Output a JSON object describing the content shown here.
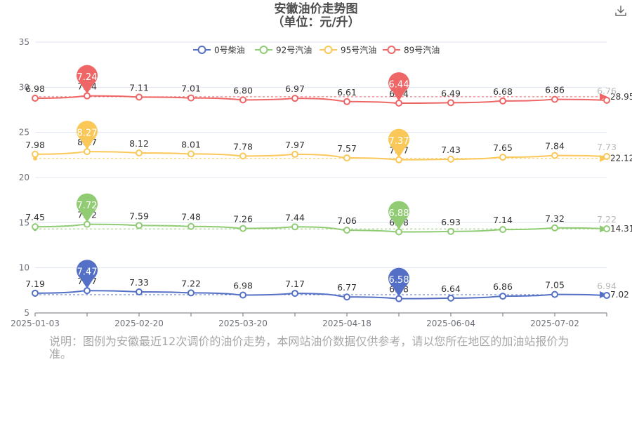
{
  "title": {
    "line1": "安徽油价走势图",
    "line2": "（单位：元/升）"
  },
  "toolbar": {
    "download_icon": "download-icon"
  },
  "note": "说明：图例为安徽最近12次调价的油价走势，本网站油价数据仅供参考，请以您所在地区的加油站报价为准。",
  "chart_data": {
    "type": "line",
    "x_ticks": [
      "2025-01-03",
      "2025-02-20",
      "2025-03-20",
      "2025-04-18",
      "2025-06-04",
      "2025-07-02"
    ],
    "yticks": [
      5,
      10,
      15,
      20,
      25,
      30,
      35
    ],
    "ylim": [
      5,
      35
    ],
    "grid": true,
    "legend_position": "top",
    "series": [
      {
        "name": "0号柴油",
        "color": "#5470c6",
        "values": [
          7.19,
          7.47,
          7.33,
          7.22,
          6.98,
          7.17,
          6.77,
          6.58,
          6.64,
          6.86,
          7.05,
          6.94
        ],
        "labels": [
          "7.19",
          "7.47",
          "7.33",
          "7.22",
          "6.98",
          "7.17",
          "6.77",
          "6.58",
          "6.64",
          "6.86",
          "7.05",
          "6.94"
        ],
        "max": {
          "value": "7.47",
          "index": 1
        },
        "min": {
          "value": "6.58",
          "index": 7
        },
        "average": "7.02"
      },
      {
        "name": "92号汽油",
        "color": "#91cc75",
        "values": [
          7.45,
          7.72,
          7.59,
          7.48,
          7.26,
          7.44,
          7.06,
          6.88,
          6.93,
          7.14,
          7.32,
          7.22
        ],
        "labels": [
          "7.45",
          "7.72",
          "7.59",
          "7.48",
          "7.26",
          "7.44",
          "7.06",
          "6.88",
          "6.93",
          "7.14",
          "7.32",
          "7.22"
        ],
        "max": {
          "value": "7.72",
          "index": 1
        },
        "min": {
          "value": "6.88",
          "index": 7
        },
        "average": "14.31"
      },
      {
        "name": "95号汽油",
        "color": "#fac858",
        "values": [
          7.98,
          8.27,
          8.12,
          8.01,
          7.78,
          7.97,
          7.57,
          7.37,
          7.43,
          7.65,
          7.84,
          7.73
        ],
        "labels": [
          "7.98",
          "8.27",
          "8.12",
          "8.01",
          "7.78",
          "7.97",
          "7.57",
          "7.37",
          "7.43",
          "7.65",
          "7.84",
          "7.73"
        ],
        "max": {
          "value": "8.27",
          "index": 1
        },
        "min": {
          "value": "7.37",
          "index": 7
        },
        "average": "22.12"
      },
      {
        "name": "89号汽油",
        "color": "#ee6666",
        "values": [
          6.98,
          7.24,
          7.11,
          7.01,
          6.8,
          6.97,
          6.61,
          6.44,
          6.49,
          6.68,
          6.86,
          6.76
        ],
        "labels": [
          "6.98",
          "7.24",
          "7.11",
          "7.01",
          "6.80",
          "6.97",
          "6.61",
          "6.44",
          "6.49",
          "6.68",
          "6.86",
          "6.76"
        ],
        "max": {
          "value": "7.24",
          "index": 1
        },
        "min": {
          "value": "6.44",
          "index": 7
        },
        "average": "28.95"
      }
    ]
  }
}
